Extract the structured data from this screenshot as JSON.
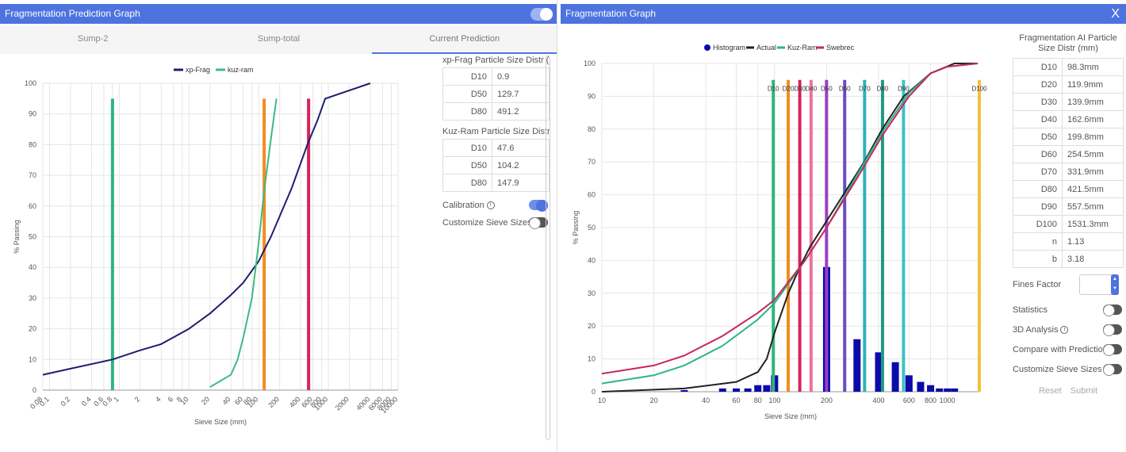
{
  "left": {
    "title": "Fragmentation Prediction Graph",
    "tabs": [
      "Sump-2",
      "Sump-total",
      "Current Prediction"
    ],
    "active_tab": 2,
    "xpfrag_table_title": "xp-Frag Particle Size Distr (mm)",
    "xpfrag_rows": [
      [
        "D10",
        "0.9"
      ],
      [
        "D50",
        "129.7"
      ],
      [
        "D80",
        "491.2"
      ]
    ],
    "kuzram_table_title": "Kuz-Ram Particle Size Distr (mm)",
    "kuzram_rows": [
      [
        "D10",
        "47.6"
      ],
      [
        "D50",
        "104.2"
      ],
      [
        "D80",
        "147.9"
      ]
    ],
    "calibration_label": "Calibration",
    "customize_label": "Customize Sieve Sizes"
  },
  "right": {
    "title": "Fragmentation Graph",
    "close_label": "X",
    "table_title": "Fragmentation AI Particle Size Distr (mm)",
    "rows": [
      [
        "D10",
        "98.3mm"
      ],
      [
        "D20",
        "119.9mm"
      ],
      [
        "D30",
        "139.9mm"
      ],
      [
        "D40",
        "162.6mm"
      ],
      [
        "D50",
        "199.8mm"
      ],
      [
        "D60",
        "254.5mm"
      ],
      [
        "D70",
        "331.9mm"
      ],
      [
        "D80",
        "421.5mm"
      ],
      [
        "D90",
        "557.5mm"
      ],
      [
        "D100",
        "1531.3mm"
      ],
      [
        "n",
        "1.13"
      ],
      [
        "b",
        "3.18"
      ]
    ],
    "fines_label": "Fines Factor",
    "toggles": [
      "Statistics",
      "3D Analysis",
      "Compare with Prediction",
      "Customize Sieve Sizes"
    ],
    "reset_label": "Reset",
    "submit_label": "Submit"
  },
  "chart_data": [
    {
      "type": "line",
      "xlabel": "Sieve Size (mm)",
      "ylabel": "% Passing",
      "x_scale": "log",
      "ylim": [
        0,
        100
      ],
      "x_tick_labels": [
        "0.08",
        "0.1",
        "0.2",
        "0.4",
        "0.6",
        "0.8",
        "1",
        "2",
        "4",
        "6",
        "8",
        "10",
        "20",
        "40",
        "60",
        "80",
        "100",
        "200",
        "400",
        "600",
        "800",
        "1000",
        "2000",
        "4000",
        "6000",
        "8000",
        "10000"
      ],
      "y_tick_labels": [
        "0",
        "10",
        "20",
        "30",
        "40",
        "50",
        "60",
        "70",
        "80",
        "90",
        "100"
      ],
      "legend": [
        "xp-Frag",
        "kuz-ram"
      ],
      "legend_position": "top",
      "series": [
        {
          "name": "xp-Frag",
          "color": "#1f1f6e",
          "x": [
            0.08,
            0.2,
            0.8,
            2,
            4,
            10,
            20,
            40,
            60,
            100,
            150,
            300,
            500,
            700,
            900,
            4000
          ],
          "y": [
            5,
            7,
            10,
            13,
            15,
            20,
            25,
            31,
            35,
            42,
            50,
            66,
            80,
            88,
            95,
            100
          ]
        },
        {
          "name": "kuz-ram",
          "color": "#3dba85",
          "x": [
            20,
            40,
            50,
            60,
            80,
            100,
            120,
            150,
            180
          ],
          "y": [
            1,
            5,
            10,
            17,
            30,
            48,
            65,
            82,
            95
          ]
        }
      ],
      "markers": [
        {
          "x": 0.8,
          "color": "#2fb57e"
        },
        {
          "x": 120,
          "color": "#f28c1e"
        },
        {
          "x": 520,
          "color": "#d5245c"
        }
      ]
    },
    {
      "type": "line",
      "xlabel": "Sieve Size (mm)",
      "ylabel": "% Passing",
      "x_scale": "log",
      "ylim": [
        0,
        100
      ],
      "x_tick_labels": [
        "10",
        "20",
        "40",
        "60",
        "80",
        "100",
        "200",
        "400",
        "600",
        "800",
        "1000"
      ],
      "y_tick_labels": [
        "0",
        "10",
        "20",
        "30",
        "40",
        "50",
        "60",
        "70",
        "80",
        "90",
        "100"
      ],
      "legend": [
        "Histogram",
        "Actual",
        "Kuz-Ram",
        "Swebrec"
      ],
      "legend_position": "top",
      "series": [
        {
          "name": "Actual",
          "color": "#222222",
          "x": [
            10,
            30,
            60,
            80,
            90,
            100,
            120,
            140,
            160,
            200,
            250,
            330,
            420,
            560,
            800,
            1100,
            1500
          ],
          "y": [
            0,
            1,
            3,
            6,
            10,
            18,
            30,
            38,
            44,
            52,
            60,
            70,
            80,
            90,
            97,
            100,
            100
          ]
        },
        {
          "name": "Kuz-Ram",
          "color": "#2db38a",
          "x": [
            10,
            20,
            30,
            50,
            80,
            100,
            150,
            200,
            300,
            420,
            600,
            800,
            1000,
            1500
          ],
          "y": [
            2.5,
            5,
            8,
            14,
            22,
            27,
            40,
            50,
            66,
            79,
            91,
            97,
            99,
            100
          ]
        },
        {
          "name": "Swebrec",
          "color": "#c8265c",
          "x": [
            10,
            20,
            30,
            50,
            80,
            100,
            150,
            200,
            300,
            420,
            600,
            800,
            1000,
            1500
          ],
          "y": [
            5.5,
            8,
            11,
            17,
            24,
            28,
            40,
            50,
            65,
            78,
            90,
            97,
            99,
            100
          ]
        }
      ],
      "histogram": {
        "color": "#0b0baa",
        "x": [
          30,
          50,
          60,
          70,
          80,
          90,
          100,
          200,
          300,
          400,
          500,
          600,
          700,
          800,
          900,
          1000,
          1100
        ],
        "y": [
          0.5,
          1,
          1,
          1,
          2,
          2,
          5,
          38,
          16,
          12,
          9,
          5,
          3,
          2,
          1,
          1,
          1
        ]
      },
      "markers": [
        {
          "label": "D10",
          "x": 98.3,
          "color": "#2eb67d"
        },
        {
          "label": "D20",
          "x": 119.9,
          "color": "#f28c1e"
        },
        {
          "label": "D30",
          "x": 139.9,
          "color": "#d5245c"
        },
        {
          "label": "D40",
          "x": 162.6,
          "color": "#ee6fa0"
        },
        {
          "label": "D50",
          "x": 199.8,
          "color": "#9b3fc4"
        },
        {
          "label": "D60",
          "x": 254.5,
          "color": "#6b4cc0"
        },
        {
          "label": "D70",
          "x": 331.9,
          "color": "#2bb3b8"
        },
        {
          "label": "D80",
          "x": 421.5,
          "color": "#1f9a84"
        },
        {
          "label": "D90",
          "x": 557.5,
          "color": "#3cc2c8"
        },
        {
          "label": "D100",
          "x": 1531.3,
          "color": "#f2c13a"
        }
      ]
    }
  ]
}
